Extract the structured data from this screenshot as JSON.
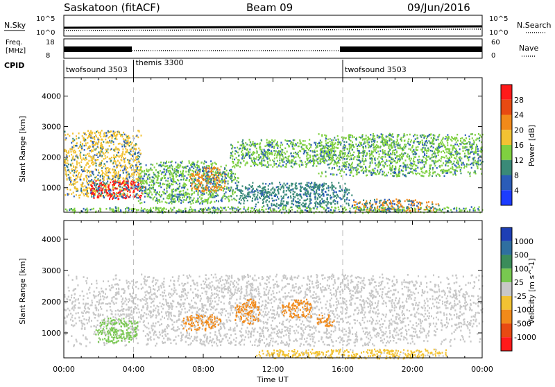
{
  "header": {
    "title": "Saskatoon (fitACF)",
    "beam": "Beam 09",
    "date": "09/Jun/2016"
  },
  "top_panels": {
    "nsky_label": "N.Sky",
    "nsky_ticks": [
      "10^5",
      "10^0"
    ],
    "nsky_right_ticks": [
      "10^5",
      "10^0"
    ],
    "nsearch_label": "N.Search",
    "freq_label_line1": "Freq.",
    "freq_label_line2": "[MHz]",
    "freq_ticks": [
      "18",
      "8"
    ],
    "nave_ticks": [
      "60",
      "0"
    ],
    "nave_label": "Nave",
    "cpid_label": "CPID",
    "cpid_segments": [
      {
        "name": "twofsound 3503",
        "start_hour": 0
      },
      {
        "name": "themis 3300",
        "start_hour": 4
      },
      {
        "name": "twofsound 3503",
        "start_hour": 16
      }
    ]
  },
  "chart_data": [
    {
      "type": "heatmap",
      "panel": "power",
      "ylabel": "Slant Range [km]",
      "yticks": [
        1000,
        2000,
        3000,
        4000
      ],
      "ylim": [
        200,
        4600
      ],
      "xlim": [
        0,
        24
      ],
      "colorbar_label": "Power [dB]",
      "colorbar_ticks": [
        4,
        8,
        12,
        16,
        20,
        24,
        28
      ],
      "colorbar_colors": [
        "#1c3cff",
        "#2b5cb8",
        "#3a8a78",
        "#7fd040",
        "#f2c233",
        "#f28a1a",
        "#e84a12",
        "#ff1a1a"
      ],
      "regions": [
        {
          "x0": 0.0,
          "x1": 4.4,
          "y0": 700,
          "y1": 2900,
          "level": 16
        },
        {
          "x0": 1.5,
          "x1": 4.6,
          "y0": 650,
          "y1": 1250,
          "level": 28
        },
        {
          "x0": 4.2,
          "x1": 10.0,
          "y0": 500,
          "y1": 1900,
          "level": 12
        },
        {
          "x0": 7.2,
          "x1": 9.3,
          "y0": 900,
          "y1": 1700,
          "level": 22
        },
        {
          "x0": 9.5,
          "x1": 15.5,
          "y0": 1700,
          "y1": 2600,
          "level": 12
        },
        {
          "x0": 10.0,
          "x1": 16.5,
          "y0": 400,
          "y1": 1200,
          "level": 10
        },
        {
          "x0": 14.5,
          "x1": 24.0,
          "y0": 1400,
          "y1": 2800,
          "level": 12
        },
        {
          "x0": 16.5,
          "x1": 21.5,
          "y0": 250,
          "y1": 650,
          "level": 20
        },
        {
          "x0": 0.0,
          "x1": 24.0,
          "y0": 200,
          "y1": 400,
          "level": 14
        }
      ]
    },
    {
      "type": "heatmap",
      "panel": "velocity",
      "xlabel": "Time UT",
      "ylabel": "Slant Range [km]",
      "xticks": [
        "00:00",
        "04:00",
        "08:00",
        "12:00",
        "16:00",
        "20:00",
        "00:00"
      ],
      "yticks": [
        1000,
        2000,
        3000,
        4000
      ],
      "ylim": [
        200,
        4600
      ],
      "xlim": [
        0,
        24
      ],
      "colorbar_label": "Velocity [m s^-1]",
      "colorbar_ticks": [
        "1000",
        "500",
        "100",
        "25",
        "-25",
        "-100",
        "-500",
        "-1000"
      ],
      "colorbar_colors": [
        "#1e3fb5",
        "#2f6fa0",
        "#3b8c5a",
        "#78c850",
        "#c8c8c8",
        "#f2c233",
        "#f28a1a",
        "#e84a12",
        "#ff1a1a"
      ],
      "regions": [
        {
          "x0": 0.0,
          "x1": 24.0,
          "y0": 600,
          "y1": 2900,
          "level": "25"
        },
        {
          "x0": 1.8,
          "x1": 4.2,
          "y0": 700,
          "y1": 1500,
          "level": "100"
        },
        {
          "x0": 6.8,
          "x1": 9.0,
          "y0": 1100,
          "y1": 1600,
          "level": "-100"
        },
        {
          "x0": 9.8,
          "x1": 11.2,
          "y0": 1300,
          "y1": 2100,
          "level": "-100"
        },
        {
          "x0": 12.5,
          "x1": 14.2,
          "y0": 1500,
          "y1": 2100,
          "level": "-100"
        },
        {
          "x0": 14.5,
          "x1": 15.5,
          "y0": 1200,
          "y1": 1600,
          "level": "-100"
        },
        {
          "x0": 11.0,
          "x1": 22.0,
          "y0": 200,
          "y1": 500,
          "level": "-25"
        }
      ]
    }
  ]
}
